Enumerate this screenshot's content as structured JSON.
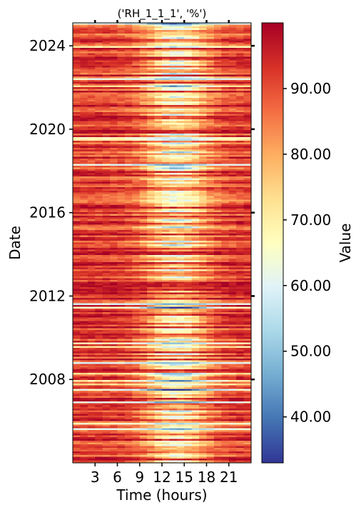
{
  "chart_data": {
    "type": "heatmap",
    "title": "('RH_1_1_1', '%')",
    "xlabel": "Time (hours)",
    "ylabel": "Date",
    "xticks": [
      3,
      6,
      9,
      12,
      15,
      18,
      21
    ],
    "xtick_labels": [
      "3",
      "6",
      "9",
      "12",
      "15",
      "18",
      "21"
    ],
    "xlim": [
      0,
      24
    ],
    "yticks": [
      2008,
      2012,
      2016,
      2020,
      2024
    ],
    "ytick_labels": [
      "2008",
      "2012",
      "2016",
      "2020",
      "2024"
    ],
    "ylim": [
      2004.0,
      2025.1
    ],
    "colorbar": {
      "label": "Value",
      "colormap": "RdYlBu_r",
      "range": [
        33,
        100
      ],
      "ticks": [
        40,
        50,
        60,
        70,
        80,
        90
      ],
      "tick_labels": [
        "40.00",
        "50.00",
        "60.00",
        "70.00",
        "80.00",
        "90.00"
      ]
    },
    "colors": [
      "#313695",
      "#4575b4",
      "#74add1",
      "#abd9e9",
      "#e0f3f8",
      "#ffffbf",
      "#fee090",
      "#fdae61",
      "#f46d43",
      "#d73027",
      "#a50026"
    ]
  }
}
